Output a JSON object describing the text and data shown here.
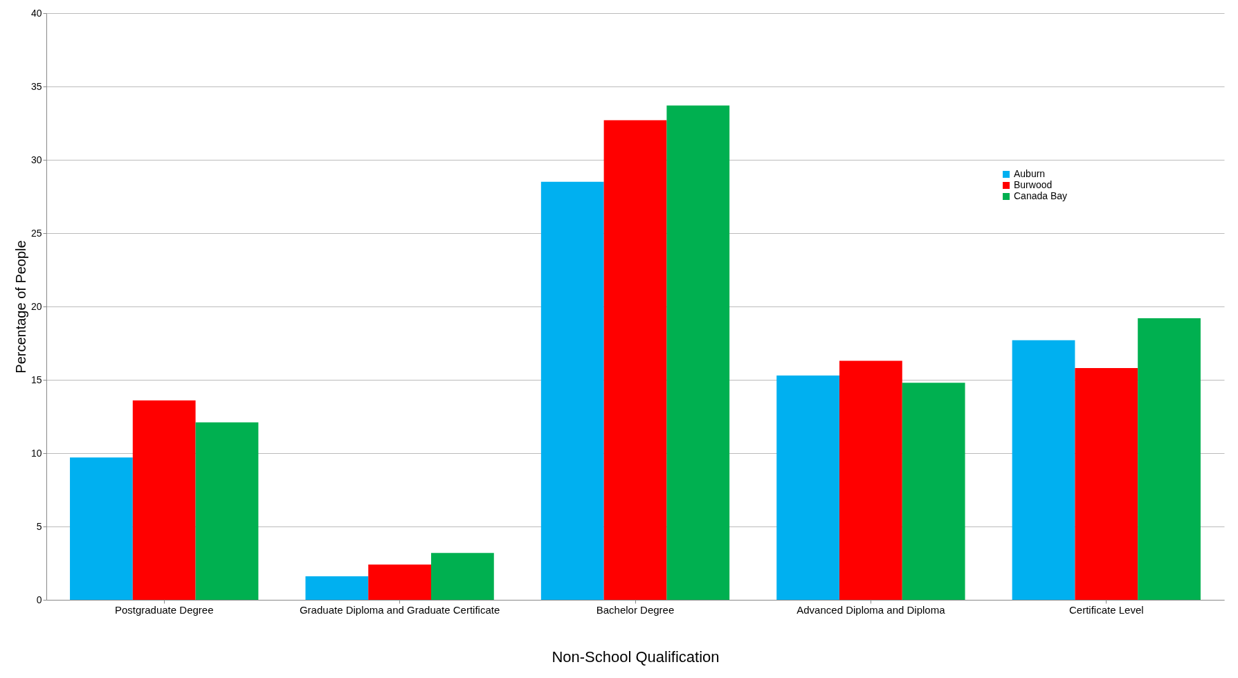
{
  "chart_data": {
    "type": "bar",
    "xlabel": "Non-School Qualification",
    "ylabel": "Percentage of People",
    "categories": [
      "Postgraduate Degree",
      "Graduate Diploma and Graduate Certificate",
      "Bachelor Degree",
      "Advanced Diploma and Diploma",
      "Certificate Level"
    ],
    "series": [
      {
        "name": "Auburn",
        "color": "#00b0f0",
        "values": [
          9.7,
          1.6,
          28.5,
          15.3,
          17.7
        ]
      },
      {
        "name": "Burwood",
        "color": "#ff0000",
        "values": [
          13.6,
          2.4,
          32.7,
          16.3,
          15.8
        ]
      },
      {
        "name": "Canada Bay",
        "color": "#00b050",
        "values": [
          12.1,
          3.2,
          33.7,
          14.8,
          19.2
        ]
      }
    ],
    "ylim": [
      0,
      40
    ],
    "yticks": [
      0,
      5,
      10,
      15,
      20,
      25,
      30,
      35,
      40
    ],
    "grid": "y",
    "legend": "top right"
  }
}
